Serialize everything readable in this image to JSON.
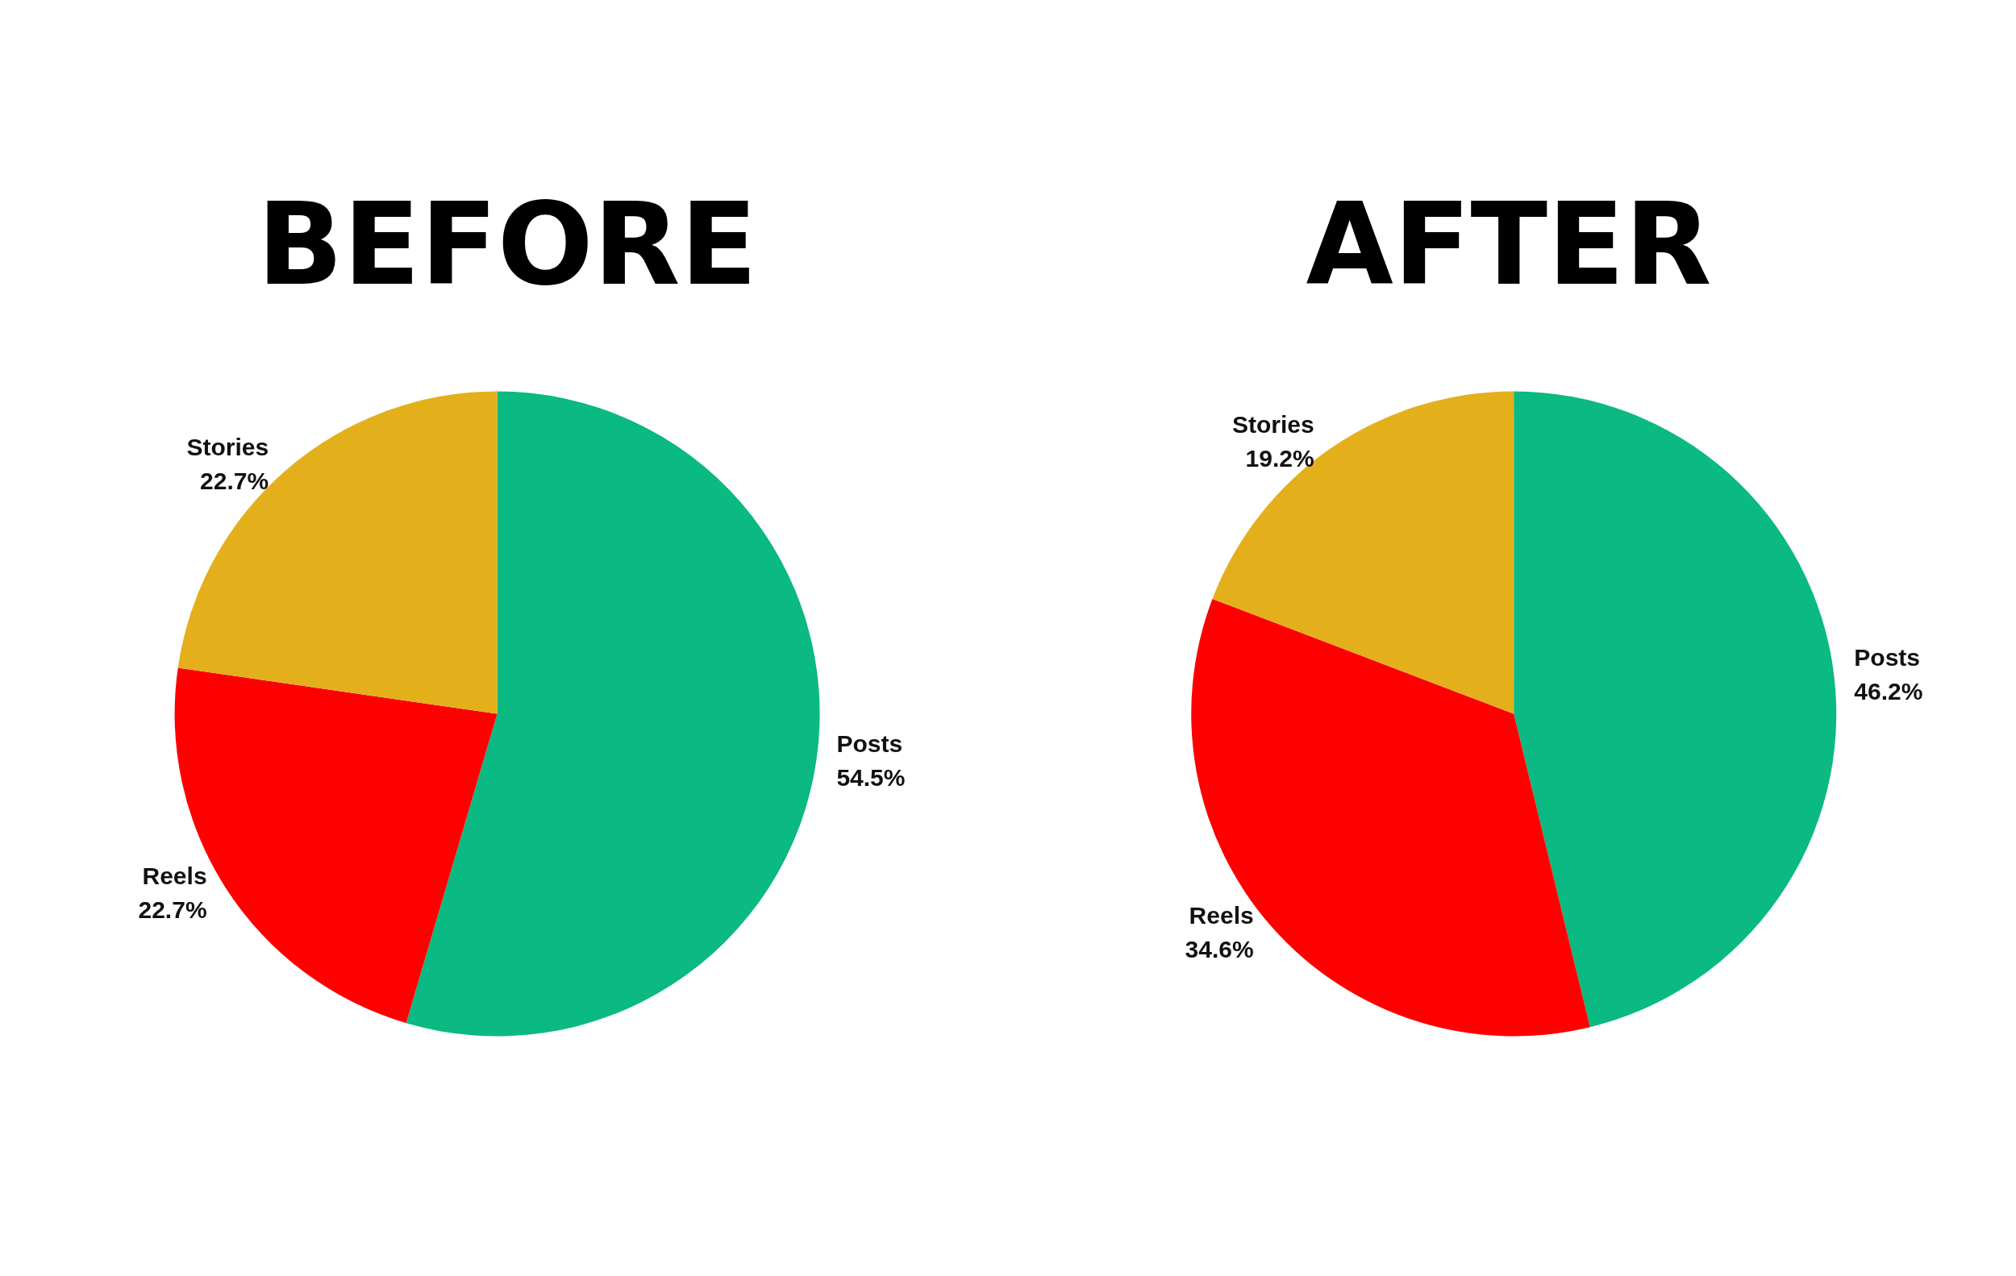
{
  "chart_data": [
    {
      "type": "pie",
      "title": "BEFORE",
      "categories": [
        "Posts",
        "Reels",
        "Stories"
      ],
      "values": [
        54.5,
        22.7,
        22.7
      ],
      "colors": [
        "#0bb982",
        "#fe0000",
        "#e3b01c"
      ],
      "value_labels": [
        "54.5%",
        "22.7%",
        "22.7%"
      ]
    },
    {
      "type": "pie",
      "title": "AFTER",
      "categories": [
        "Posts",
        "Reels",
        "Stories"
      ],
      "values": [
        46.2,
        34.6,
        19.2
      ],
      "colors": [
        "#0bb982",
        "#fe0000",
        "#e3b01c"
      ],
      "value_labels": [
        "46.2%",
        "34.6%",
        "19.2%"
      ]
    }
  ]
}
